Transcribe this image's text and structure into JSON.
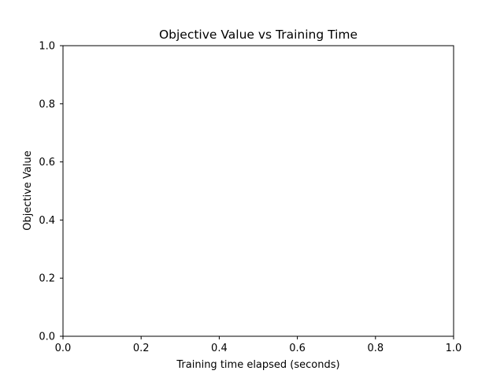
{
  "chart_data": {
    "type": "line",
    "title": "Objective Value vs Training Time",
    "xlabel": "Training time elapsed (seconds)",
    "ylabel": "Objective Value",
    "xlim": [
      0.0,
      1.0
    ],
    "ylim": [
      0.0,
      1.0
    ],
    "xticks": [
      "0.0",
      "0.2",
      "0.4",
      "0.6",
      "0.8",
      "1.0"
    ],
    "yticks": [
      "0.0",
      "0.2",
      "0.4",
      "0.6",
      "0.8",
      "1.0"
    ],
    "series": [],
    "grid": false,
    "legend": "none"
  },
  "colors": {
    "axes": "#000000",
    "background": "#ffffff"
  }
}
